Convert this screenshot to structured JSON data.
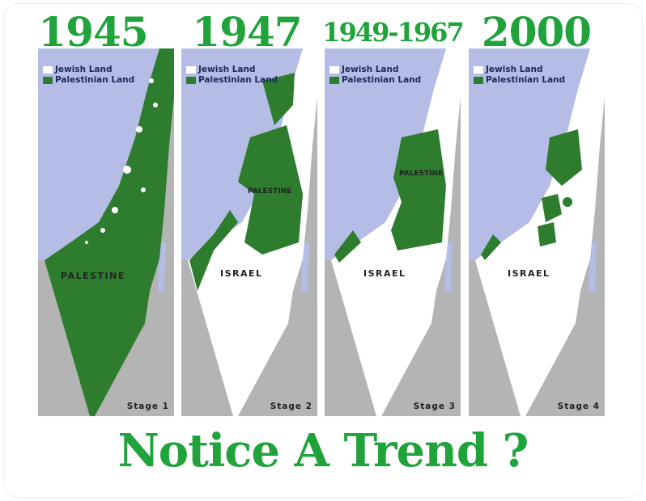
{
  "colors": {
    "accent": "#1fa33a",
    "palestinian_land": "#2e7d2e",
    "jewish_land": "#ffffff",
    "sea": "#b5bde6",
    "neighbor_land": "#b4b4b4"
  },
  "legend": {
    "jewish": "Jewish Land",
    "palestinian": "Palestinian Land"
  },
  "panels": [
    {
      "year": "1945",
      "region_label": "PALESTINE",
      "stage": "Stage 1",
      "palestinian_share": "most"
    },
    {
      "year": "1947",
      "region_label": "ISRAEL",
      "inner_label": "PALESTINE",
      "stage": "Stage 2"
    },
    {
      "year": "1949-1967",
      "region_label": "ISRAEL",
      "inner_label": "PALESTINE",
      "stage": "Stage 3"
    },
    {
      "year": "2000",
      "region_label": "ISRAEL",
      "stage": "Stage 4"
    }
  ],
  "footer": "Notice A Trend ?"
}
